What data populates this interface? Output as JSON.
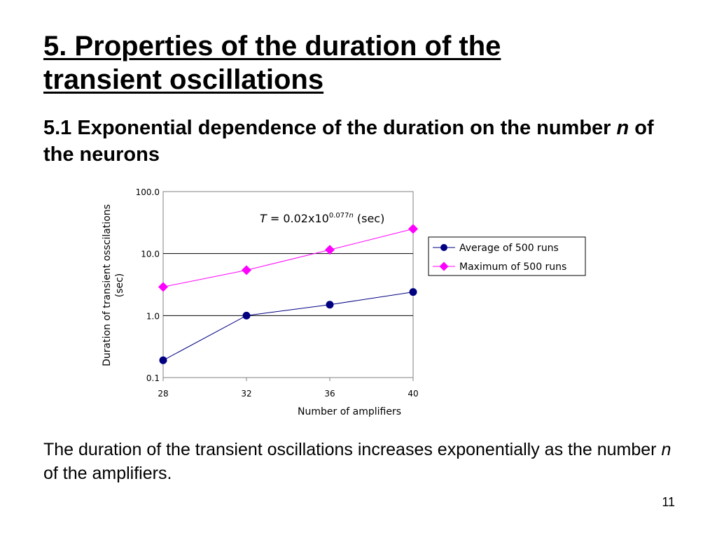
{
  "slide": {
    "title_line1": "5. Properties of the duration of the",
    "title_line2": "transient oscillations",
    "subtitle_pre": "5.1 Exponential dependence of the duration on the number ",
    "subtitle_var": "n",
    "subtitle_post": " of the neurons",
    "body_pre": "The duration of the transient oscillations increases exponentially as the number ",
    "body_var": "n",
    "body_post": " of the amplifiers.",
    "page_number": "11"
  },
  "chart_data": {
    "type": "line",
    "x": [
      28,
      32,
      36,
      40
    ],
    "xlabel": "Number of amplifiers",
    "ylabel": "Duration of transient osscilations (sec)",
    "y_scale": "log",
    "ylim": [
      0.1,
      100
    ],
    "y_ticks": [
      "100.0",
      "10.0",
      "1.0",
      "0.1"
    ],
    "x_ticks": [
      "28",
      "32",
      "36",
      "40"
    ],
    "grid": "horizontal",
    "legend_position": "right",
    "annotation": {
      "var": "T",
      "eq": " = 0.02x10",
      "exp": "0.077",
      "exp_var": "n",
      "unit": " (sec)"
    },
    "series": [
      {
        "name": "Average of 500 runs",
        "values": [
          0.19,
          1.0,
          1.5,
          2.4
        ],
        "color": "#000080",
        "marker": "circle"
      },
      {
        "name": "Maximum of 500 runs",
        "values": [
          2.9,
          5.4,
          11.5,
          25
        ],
        "color": "#FF00FF",
        "marker": "diamond"
      }
    ]
  }
}
